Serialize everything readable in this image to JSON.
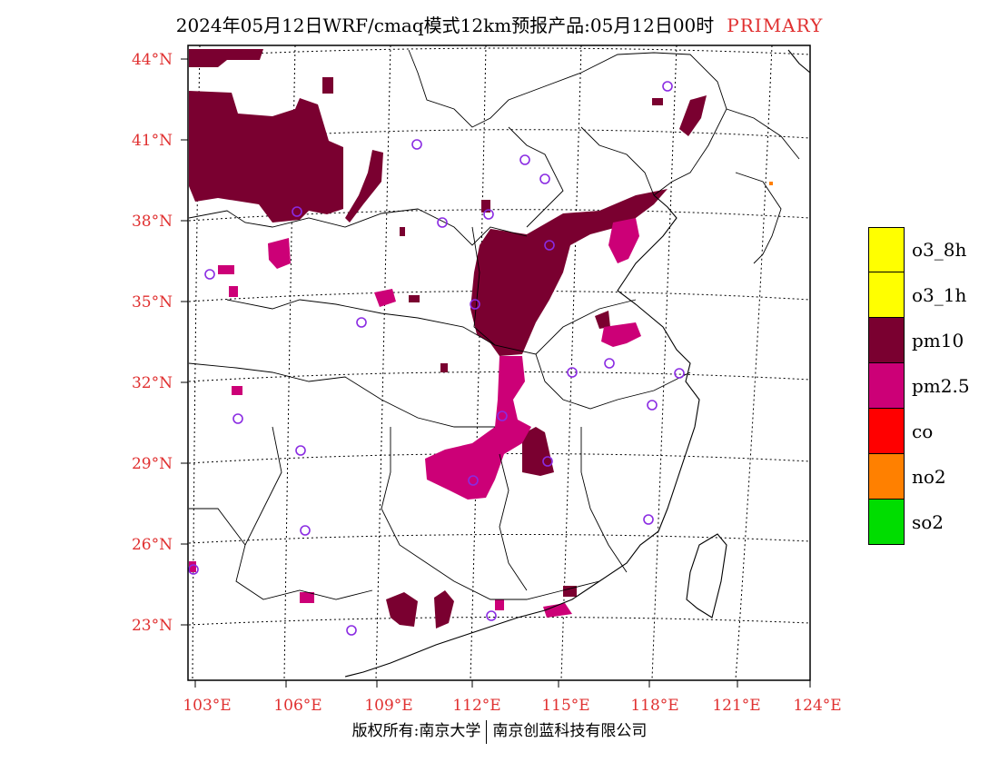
{
  "title": {
    "main": "2024年05月12日WRF/cmaq模式12km预报产品:05月12日00时",
    "tag": "PRIMARY"
  },
  "axes": {
    "lat_labels": [
      "44°N",
      "41°N",
      "38°N",
      "35°N",
      "32°N",
      "29°N",
      "26°N",
      "23°N"
    ],
    "lon_labels": [
      "103°E",
      "106°E",
      "109°E",
      "112°E",
      "115°E",
      "118°E",
      "121°E",
      "124°E"
    ]
  },
  "legend": {
    "items": [
      {
        "label": "o3_8h",
        "color": "#ffff00"
      },
      {
        "label": "o3_1h",
        "color": "#ffff00"
      },
      {
        "label": "pm10",
        "color": "#7a0030"
      },
      {
        "label": "pm2.5",
        "color": "#cc0077"
      },
      {
        "label": "co",
        "color": "#ff0000"
      },
      {
        "label": "no2",
        "color": "#ff8000"
      },
      {
        "label": "so2",
        "color": "#00dd00"
      }
    ]
  },
  "credits": {
    "left": "版权所有:南京大学",
    "right": "南京创蓝科技有限公司"
  },
  "colors": {
    "pm10": "#7a0030",
    "pm25": "#cc0077",
    "station_ring": "#8a2be2",
    "tick_red": "#e03030"
  }
}
